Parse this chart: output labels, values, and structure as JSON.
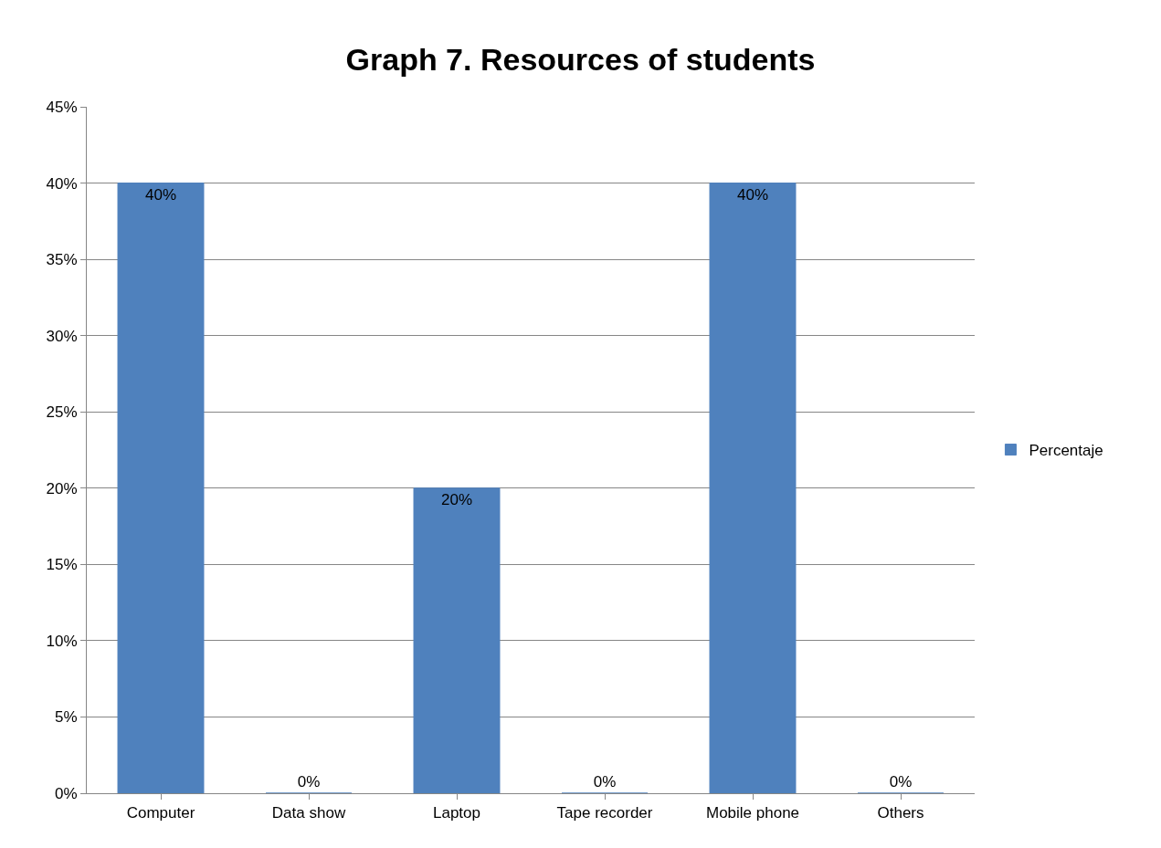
{
  "chart_data": {
    "type": "bar",
    "title": "Graph 7. Resources of students",
    "categories": [
      "Computer",
      "Data show",
      "Laptop",
      "Tape recorder",
      "Mobile phone",
      "Others"
    ],
    "series": [
      {
        "name": "Percentaje",
        "color": "#4f81bd",
        "values": [
          40,
          0,
          20,
          0,
          40,
          0
        ],
        "value_labels": [
          "40%",
          "0%",
          "20%",
          "0%",
          "40%",
          "0%"
        ]
      }
    ],
    "ylim": [
      0,
      45
    ],
    "yticks": [
      {
        "value": 0,
        "label": "0%"
      },
      {
        "value": 5,
        "label": "5%"
      },
      {
        "value": 10,
        "label": "10%"
      },
      {
        "value": 15,
        "label": "15%"
      },
      {
        "value": 20,
        "label": "20%"
      },
      {
        "value": 25,
        "label": "25%"
      },
      {
        "value": 30,
        "label": "30%"
      },
      {
        "value": 35,
        "label": "35%"
      },
      {
        "value": 40,
        "label": "40%"
      },
      {
        "value": 45,
        "label": "45%"
      }
    ],
    "grid": "y",
    "legend": "right"
  }
}
